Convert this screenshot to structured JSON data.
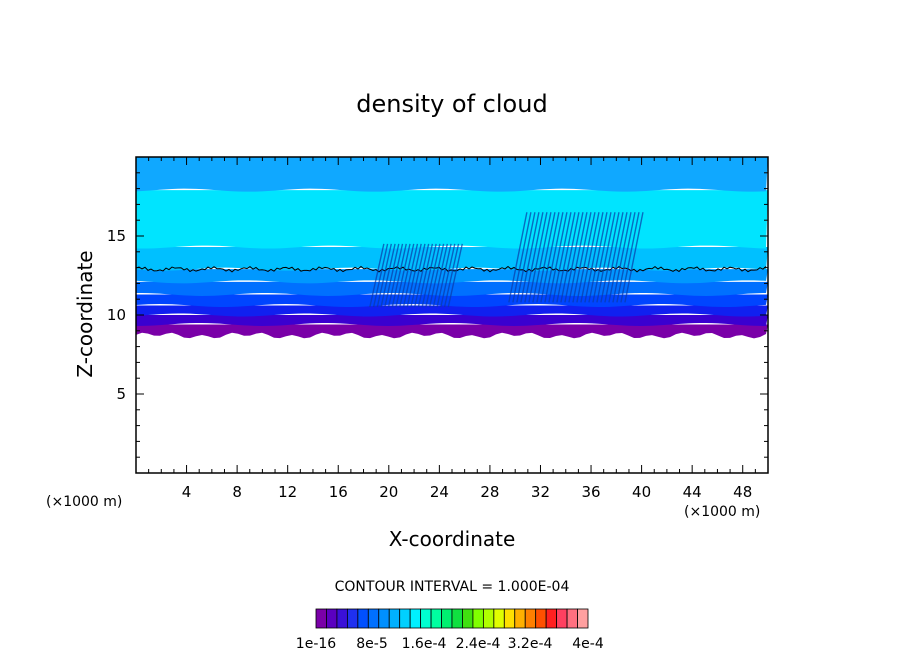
{
  "chart_data": {
    "type": "heatmap",
    "title": "density of cloud",
    "xlabel": "X-coordinate",
    "ylabel": "Z-coordinate",
    "x_unit": "(×1000 m)",
    "y_unit": "(×1000 m)",
    "xlim": [
      0,
      50
    ],
    "ylim": [
      0,
      20
    ],
    "x_ticks": [
      4,
      8,
      12,
      16,
      20,
      24,
      28,
      32,
      36,
      40,
      44,
      48
    ],
    "y_ticks": [
      5,
      10,
      15
    ],
    "contour_interval_text": "CONTOUR INTERVAL =  1.000E-04",
    "colorbar": {
      "labels": [
        "1e-16",
        "8e-5",
        "1.6e-4",
        "2.4e-4",
        "3.2e-4",
        "4e-4"
      ],
      "colors": [
        "#7a00a8",
        "#5a00c0",
        "#3a10d8",
        "#1f30f0",
        "#0050ff",
        "#0070ff",
        "#0090ff",
        "#00b0ff",
        "#00d0ff",
        "#00f0ff",
        "#00ffd0",
        "#00ffa0",
        "#00f070",
        "#10e040",
        "#40e010",
        "#80ff00",
        "#b0ff00",
        "#e0ff00",
        "#ffe000",
        "#ffb000",
        "#ff8000",
        "#ff5000",
        "#ff2020",
        "#ff4060",
        "#ff7080",
        "#ffa0a0"
      ]
    },
    "layers": [
      {
        "z_from": 8.7,
        "z_to": 9.4,
        "color": "#7a00a8"
      },
      {
        "z_from": 9.4,
        "z_to": 10.0,
        "color": "#3a00d0"
      },
      {
        "z_from": 10.0,
        "z_to": 10.6,
        "color": "#1020f0"
      },
      {
        "z_from": 10.6,
        "z_to": 11.3,
        "color": "#0045ff"
      },
      {
        "z_from": 11.3,
        "z_to": 12.1,
        "color": "#0070ff"
      },
      {
        "z_from": 12.1,
        "z_to": 12.9,
        "color": "#0098ff"
      },
      {
        "z_from": 12.9,
        "z_to": 14.3,
        "color": "#00c0ff"
      },
      {
        "z_from": 14.3,
        "z_to": 17.9,
        "color": "#00e4ff"
      },
      {
        "z_from": 17.9,
        "z_to": 20.0,
        "color": "#10a8ff"
      }
    ],
    "contour_line_z": 12.9
  }
}
